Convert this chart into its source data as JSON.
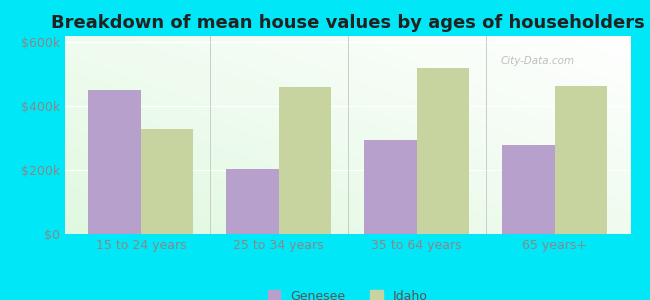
{
  "title": "Breakdown of mean house values by ages of householders",
  "categories": [
    "15 to 24 years",
    "25 to 34 years",
    "35 to 64 years",
    "65 years+"
  ],
  "genesee_values": [
    450000,
    205000,
    295000,
    280000
  ],
  "idaho_values": [
    330000,
    460000,
    520000,
    462000
  ],
  "genesee_color": "#b8a0cc",
  "idaho_color": "#c8d4a0",
  "background_outer": "#00e8f8",
  "background_inner": "#f0faf0",
  "ylim": [
    0,
    620000
  ],
  "yticks": [
    0,
    200000,
    400000,
    600000
  ],
  "ytick_labels": [
    "$0",
    "$200k",
    "$400k",
    "$600k"
  ],
  "legend_labels": [
    "Genesee",
    "Idaho"
  ],
  "bar_width": 0.38,
  "title_fontsize": 13,
  "tick_fontsize": 9,
  "legend_fontsize": 9
}
